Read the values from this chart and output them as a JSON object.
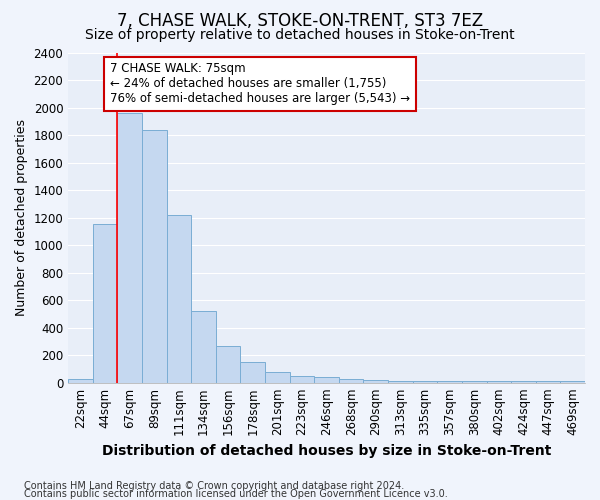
{
  "title": "7, CHASE WALK, STOKE-ON-TRENT, ST3 7EZ",
  "subtitle": "Size of property relative to detached houses in Stoke-on-Trent",
  "xlabel": "Distribution of detached houses by size in Stoke-on-Trent",
  "ylabel": "Number of detached properties",
  "categories": [
    "22sqm",
    "44sqm",
    "67sqm",
    "89sqm",
    "111sqm",
    "134sqm",
    "156sqm",
    "178sqm",
    "201sqm",
    "223sqm",
    "246sqm",
    "268sqm",
    "290sqm",
    "313sqm",
    "335sqm",
    "357sqm",
    "380sqm",
    "402sqm",
    "424sqm",
    "447sqm",
    "469sqm"
  ],
  "values": [
    30,
    1150,
    1960,
    1840,
    1220,
    520,
    265,
    150,
    80,
    48,
    40,
    25,
    20,
    15,
    15,
    10,
    10,
    10,
    10,
    10,
    10
  ],
  "bar_color": "#c5d8f0",
  "bar_edge_color": "#7aadd4",
  "red_line_index": 2,
  "annotation_title": "7 CHASE WALK: 75sqm",
  "annotation_line2": "← 24% of detached houses are smaller (1,755)",
  "annotation_line3": "76% of semi-detached houses are larger (5,543) →",
  "ylim": [
    0,
    2400
  ],
  "yticks": [
    0,
    200,
    400,
    600,
    800,
    1000,
    1200,
    1400,
    1600,
    1800,
    2000,
    2200,
    2400
  ],
  "footnote1": "Contains HM Land Registry data © Crown copyright and database right 2024.",
  "footnote2": "Contains public sector information licensed under the Open Government Licence v3.0.",
  "bg_color": "#f0f4fc",
  "plot_bg_color": "#e8eef8",
  "grid_color": "#ffffff",
  "title_fontsize": 12,
  "subtitle_fontsize": 10,
  "xlabel_fontsize": 10,
  "ylabel_fontsize": 9,
  "tick_fontsize": 8.5,
  "annotation_box_color": "#cc0000",
  "annotation_fontsize": 8.5,
  "footnote_fontsize": 7,
  "figsize": [
    6.0,
    5.0
  ],
  "dpi": 100
}
